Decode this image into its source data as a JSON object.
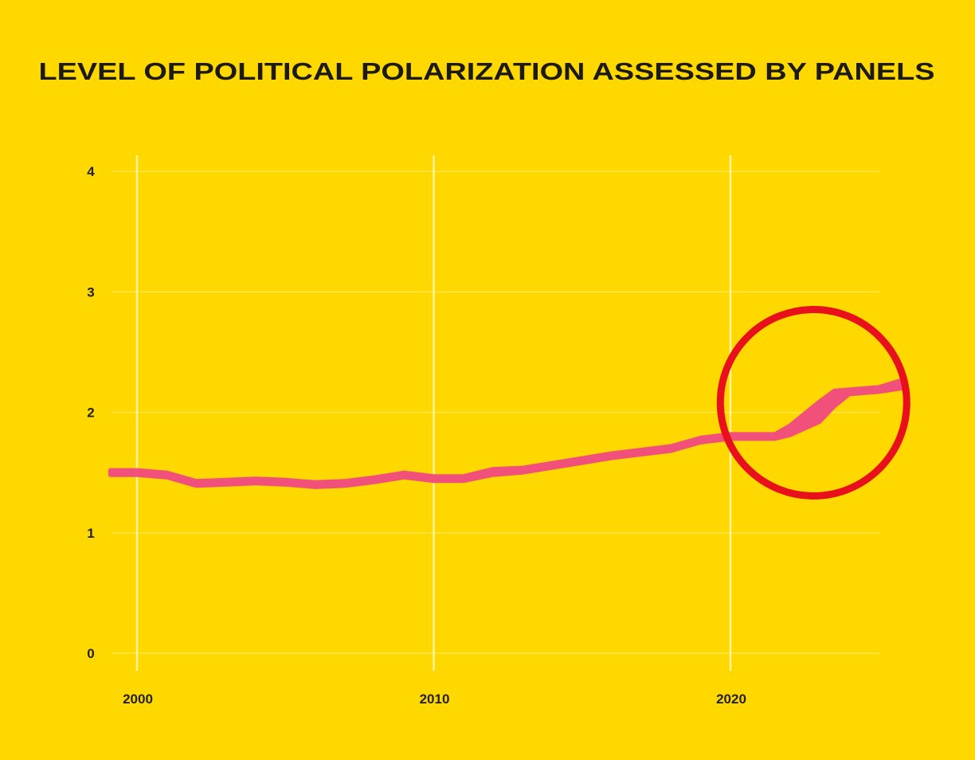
{
  "chart_data": {
    "type": "line",
    "title": "LEVEL OF POLITICAL POLARIZATION ASSESSED BY PANELS",
    "xlabel": "",
    "ylabel": "",
    "xlim": [
      1999.1,
      2026.5
    ],
    "ylim": [
      0,
      4
    ],
    "x_ticks": [
      "2000",
      "2010",
      "2020"
    ],
    "y_ticks": [
      "0",
      "1",
      "2",
      "3",
      "4"
    ],
    "grid": true,
    "x": [
      1999.1,
      2000,
      2001,
      2002,
      2003,
      2004,
      2005,
      2006,
      2007,
      2008,
      2009,
      2010,
      2011,
      2012,
      2013,
      2014,
      2015,
      2016,
      2017,
      2018,
      2019,
      2020,
      2021,
      2021.5,
      2022,
      2023,
      2023.5,
      2024,
      2025,
      2025.8
    ],
    "series": [
      {
        "values": [
          1.5,
          1.5,
          1.48,
          1.41,
          1.42,
          1.43,
          1.42,
          1.4,
          1.41,
          1.44,
          1.48,
          1.45,
          1.45,
          1.51,
          1.52,
          1.56,
          1.6,
          1.64,
          1.67,
          1.7,
          1.77,
          1.8,
          1.8,
          1.8,
          1.85,
          2.02,
          2.14,
          2.17,
          2.19,
          2.24
        ],
        "low": [
          1.48,
          1.48,
          1.46,
          1.39,
          1.4,
          1.41,
          1.4,
          1.38,
          1.39,
          1.42,
          1.46,
          1.43,
          1.43,
          1.48,
          1.5,
          1.54,
          1.58,
          1.62,
          1.65,
          1.68,
          1.75,
          1.78,
          1.78,
          1.78,
          1.81,
          1.92,
          2.05,
          2.15,
          2.17,
          2.2
        ],
        "high": [
          1.52,
          1.52,
          1.5,
          1.43,
          1.44,
          1.45,
          1.44,
          1.42,
          1.43,
          1.46,
          1.5,
          1.47,
          1.47,
          1.53,
          1.54,
          1.58,
          1.62,
          1.66,
          1.69,
          1.72,
          1.79,
          1.82,
          1.82,
          1.82,
          1.89,
          2.09,
          2.18,
          2.19,
          2.21,
          2.27
        ],
        "color": "#F0507A"
      }
    ],
    "annotations": [
      {
        "type": "circle",
        "cx": 2022.8,
        "cy": 2.08,
        "color": "#E8101A"
      }
    ],
    "colors": {
      "background": "#FFD800",
      "grid": "#FFF3A0",
      "text": "#1c1a14"
    }
  }
}
